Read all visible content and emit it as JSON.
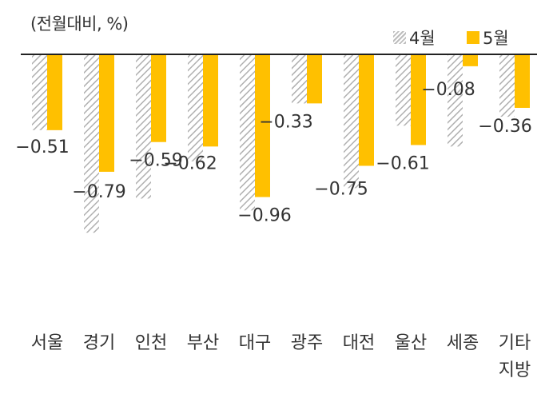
{
  "chart_data": {
    "type": "bar",
    "unit_label": "(전월대비, %)",
    "categories": [
      "서울",
      "경기",
      "인천",
      "부산",
      "대구",
      "광주",
      "대전",
      "울산",
      "세종",
      "기타 지방"
    ],
    "category_lines": [
      [
        "서울"
      ],
      [
        "경기"
      ],
      [
        "인천"
      ],
      [
        "부산"
      ],
      [
        "대구"
      ],
      [
        "광주"
      ],
      [
        "대전"
      ],
      [
        "울산"
      ],
      [
        "세종"
      ],
      [
        "기타",
        "지방"
      ]
    ],
    "series": [
      {
        "name": "4월",
        "style": "hatched-gray",
        "color": "#bdbdbd",
        "values": [
          -0.51,
          -1.2,
          -0.97,
          -0.72,
          -1.05,
          -0.33,
          -0.9,
          -0.48,
          -0.62,
          -0.42
        ]
      },
      {
        "name": "5월",
        "style": "solid",
        "color": "#FFC000",
        "values": [
          -0.51,
          -0.79,
          -0.59,
          -0.62,
          -0.96,
          -0.33,
          -0.75,
          -0.61,
          -0.08,
          -0.36
        ]
      }
    ],
    "data_labels": [
      "-0.51",
      "-0.79",
      "-0.59",
      "-0.62",
      "-0.96",
      "-0.33",
      "-0.75",
      "-0.61",
      "-0.08",
      "-0.36"
    ],
    "ylim": [
      -1.6,
      0
    ],
    "legend_position": "top-right",
    "grid": false
  }
}
